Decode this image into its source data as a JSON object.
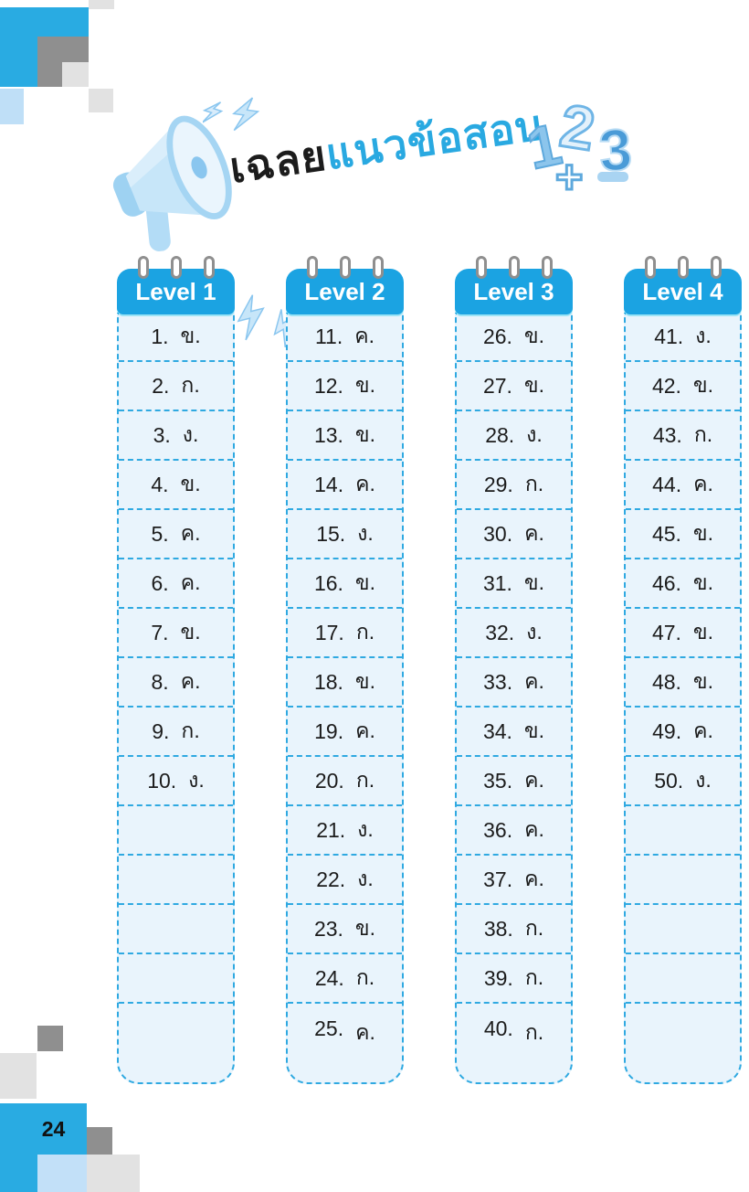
{
  "page": {
    "number": "24"
  },
  "title": {
    "black_part": "เฉลย",
    "blue_part": "แนวข้อสอบ",
    "decoration": {
      "one": "1",
      "two": "2",
      "three": "3",
      "plus": "+",
      "minus": "−"
    }
  },
  "colors": {
    "header_blue": "#1ba3e2",
    "dash_border_blue": "#2fa9e1",
    "cell_background": "#e9f4fc",
    "title_blue": "#29a9e1",
    "accent_square_blue": "#29abe2",
    "light_blue_square": "#bfdff7",
    "dark_gray_square": "#8f8f8f",
    "light_gray_square": "#e2e2e2"
  },
  "columns": [
    {
      "label": "Level 1",
      "total_cells": 15,
      "answers": [
        {
          "no": "1.",
          "ans": "ข."
        },
        {
          "no": "2.",
          "ans": "ก."
        },
        {
          "no": "3.",
          "ans": "ง."
        },
        {
          "no": "4.",
          "ans": "ข."
        },
        {
          "no": "5.",
          "ans": "ค."
        },
        {
          "no": "6.",
          "ans": "ค."
        },
        {
          "no": "7.",
          "ans": "ข."
        },
        {
          "no": "8.",
          "ans": "ค."
        },
        {
          "no": "9.",
          "ans": "ก."
        },
        {
          "no": "10.",
          "ans": "ง."
        }
      ]
    },
    {
      "label": "Level 2",
      "total_cells": 15,
      "answers": [
        {
          "no": "11.",
          "ans": "ค."
        },
        {
          "no": "12.",
          "ans": "ข."
        },
        {
          "no": "13.",
          "ans": "ข."
        },
        {
          "no": "14.",
          "ans": "ค."
        },
        {
          "no": "15.",
          "ans": "ง."
        },
        {
          "no": "16.",
          "ans": "ข."
        },
        {
          "no": "17.",
          "ans": "ก."
        },
        {
          "no": "18.",
          "ans": "ข."
        },
        {
          "no": "19.",
          "ans": "ค."
        },
        {
          "no": "20.",
          "ans": "ก."
        },
        {
          "no": "21.",
          "ans": "ง."
        },
        {
          "no": "22.",
          "ans": "ง."
        },
        {
          "no": "23.",
          "ans": "ข."
        },
        {
          "no": "24.",
          "ans": "ก."
        },
        {
          "no": "25.",
          "ans": "ค."
        }
      ]
    },
    {
      "label": "Level 3",
      "total_cells": 15,
      "answers": [
        {
          "no": "26.",
          "ans": "ข."
        },
        {
          "no": "27.",
          "ans": "ข."
        },
        {
          "no": "28.",
          "ans": "ง."
        },
        {
          "no": "29.",
          "ans": "ก."
        },
        {
          "no": "30.",
          "ans": "ค."
        },
        {
          "no": "31.",
          "ans": "ข."
        },
        {
          "no": "32.",
          "ans": "ง."
        },
        {
          "no": "33.",
          "ans": "ค."
        },
        {
          "no": "34.",
          "ans": "ข."
        },
        {
          "no": "35.",
          "ans": "ค."
        },
        {
          "no": "36.",
          "ans": "ค."
        },
        {
          "no": "37.",
          "ans": "ค."
        },
        {
          "no": "38.",
          "ans": "ก."
        },
        {
          "no": "39.",
          "ans": "ก."
        },
        {
          "no": "40.",
          "ans": "ก."
        }
      ]
    },
    {
      "label": "Level 4",
      "total_cells": 15,
      "answers": [
        {
          "no": "41.",
          "ans": "ง."
        },
        {
          "no": "42.",
          "ans": "ข."
        },
        {
          "no": "43.",
          "ans": "ก."
        },
        {
          "no": "44.",
          "ans": "ค."
        },
        {
          "no": "45.",
          "ans": "ข."
        },
        {
          "no": "46.",
          "ans": "ข."
        },
        {
          "no": "47.",
          "ans": "ข."
        },
        {
          "no": "48.",
          "ans": "ข."
        },
        {
          "no": "49.",
          "ans": "ค."
        },
        {
          "no": "50.",
          "ans": "ง."
        }
      ]
    }
  ]
}
